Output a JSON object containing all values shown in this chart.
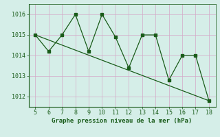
{
  "x": [
    5,
    6,
    7,
    8,
    9,
    10,
    11,
    12,
    13,
    14,
    15,
    16,
    17,
    18
  ],
  "y": [
    1015.0,
    1014.2,
    1015.0,
    1016.0,
    1014.2,
    1016.0,
    1014.9,
    1013.4,
    1015.0,
    1015.0,
    1012.8,
    1014.0,
    1014.0,
    1011.8
  ],
  "trend_x": [
    5,
    18
  ],
  "trend_y": [
    1015.0,
    1011.8
  ],
  "line_color": "#1a5c1a",
  "bg_color": "#d5eee8",
  "grid_color": "#d4a8c8",
  "xlabel": "Graphe pression niveau de la mer (hPa)",
  "xlim": [
    4.5,
    18.5
  ],
  "ylim": [
    1011.5,
    1016.5
  ],
  "yticks": [
    1012,
    1013,
    1014,
    1015,
    1016
  ],
  "xticks": [
    5,
    6,
    7,
    8,
    9,
    10,
    11,
    12,
    13,
    14,
    15,
    16,
    17,
    18
  ],
  "xlabel_fontsize": 6.5,
  "tick_fontsize": 6.0,
  "tick_color": "#1a5c1a"
}
